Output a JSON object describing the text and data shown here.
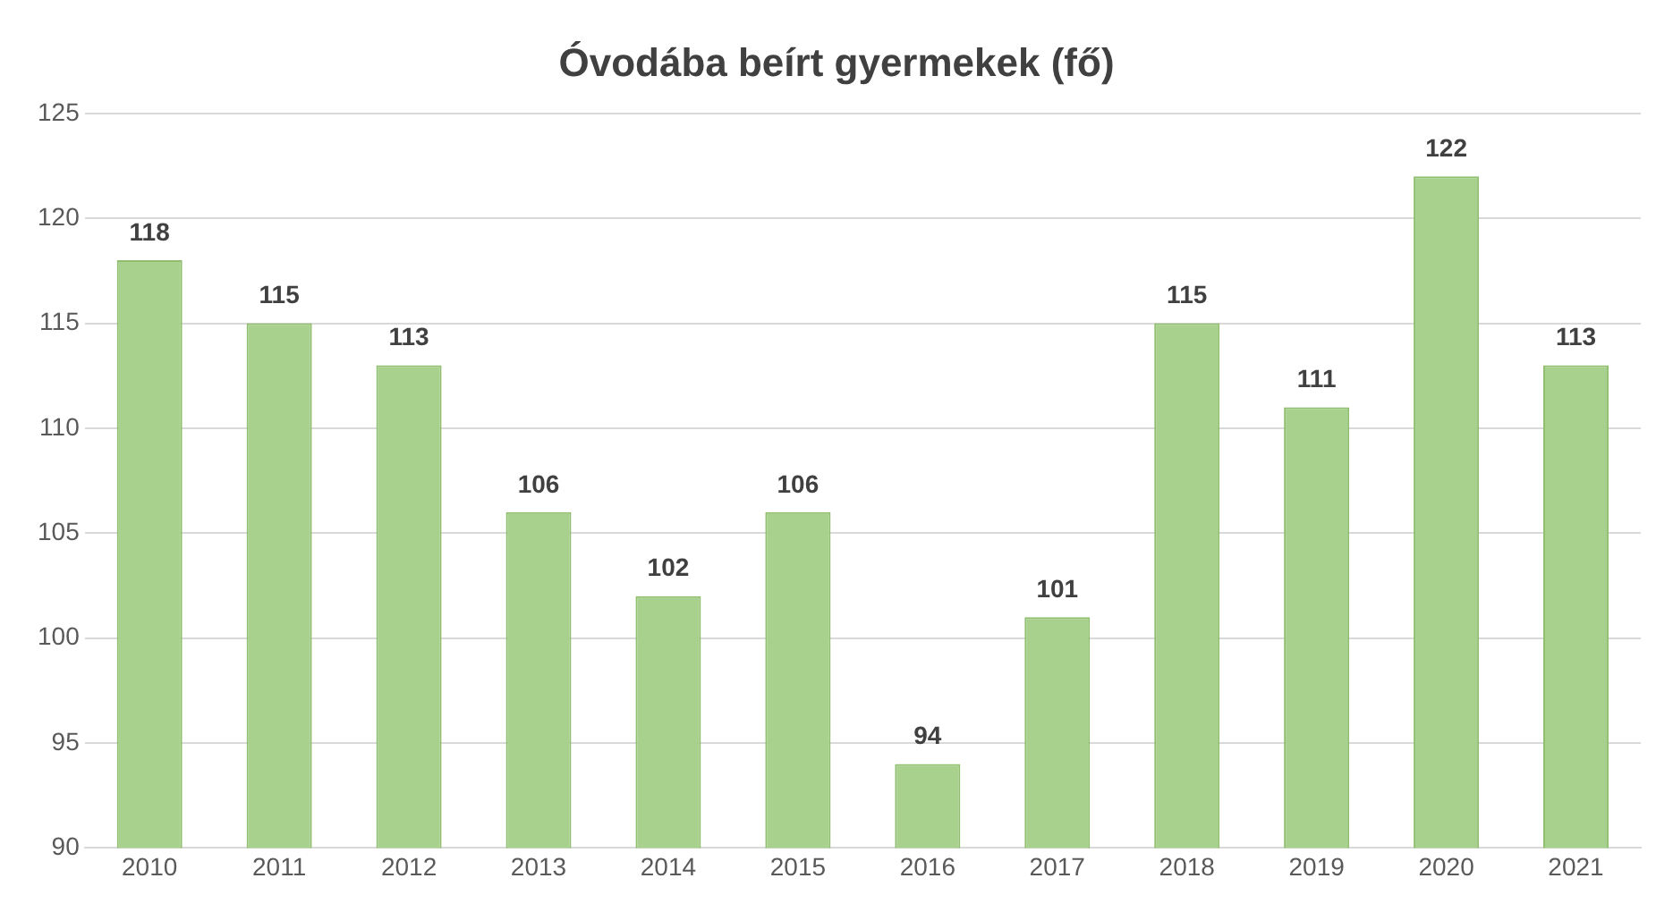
{
  "chart_data": {
    "type": "bar",
    "title": "Óvodába beírt gyermekek (fő)",
    "categories": [
      "2010",
      "2011",
      "2012",
      "2013",
      "2014",
      "2015",
      "2016",
      "2017",
      "2018",
      "2019",
      "2020",
      "2021"
    ],
    "values": [
      118,
      115,
      113,
      106,
      102,
      106,
      94,
      101,
      115,
      111,
      122,
      113
    ],
    "color": "#a9d18e",
    "ylim": [
      90,
      125
    ],
    "yticks": [
      90,
      95,
      100,
      105,
      110,
      115,
      120,
      125
    ],
    "grid": "y",
    "data_labels": true
  }
}
